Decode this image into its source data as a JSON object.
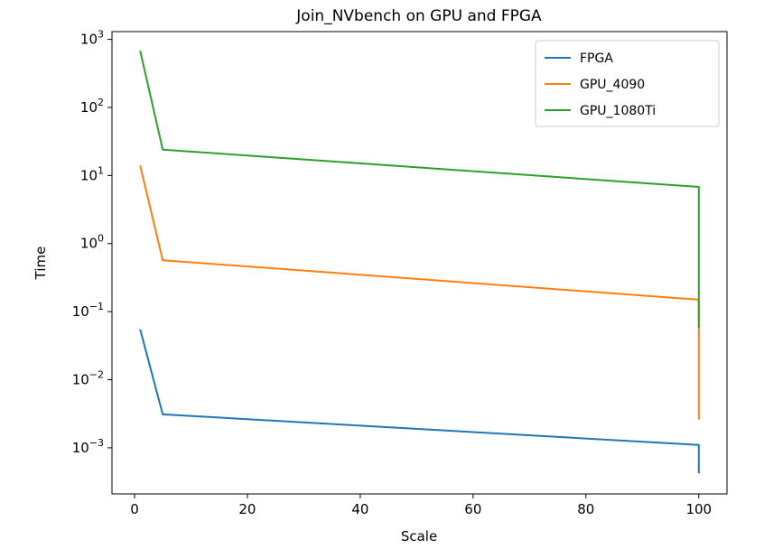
{
  "chart_data": {
    "type": "line",
    "title": "Join_NVbench on GPU and FPGA",
    "xlabel": "Scale",
    "ylabel": "Time",
    "xlim": [
      -4,
      105
    ],
    "ylim": [
      0.00021,
      1300
    ],
    "yscale": "log",
    "grid": false,
    "legend_position": "top-right",
    "xticks": [
      {
        "value": 0,
        "label": "0"
      },
      {
        "value": 20,
        "label": "20"
      },
      {
        "value": 40,
        "label": "40"
      },
      {
        "value": 60,
        "label": "60"
      },
      {
        "value": 80,
        "label": "80"
      },
      {
        "value": 100,
        "label": "100"
      }
    ],
    "yticks": [
      {
        "value": 0.001,
        "base": "10",
        "exp": "−3"
      },
      {
        "value": 0.01,
        "base": "10",
        "exp": "−2"
      },
      {
        "value": 0.1,
        "base": "10",
        "exp": "−1"
      },
      {
        "value": 1,
        "base": "10",
        "exp": "0"
      },
      {
        "value": 10,
        "base": "10",
        "exp": "1"
      },
      {
        "value": 100,
        "base": "10",
        "exp": "2"
      },
      {
        "value": 1000,
        "base": "10",
        "exp": "3"
      }
    ],
    "series": [
      {
        "name": "FPGA",
        "color": "#1f77b4",
        "x": [
          1,
          5,
          100,
          100
        ],
        "y": [
          0.055,
          0.0031,
          0.0011,
          0.00042
        ]
      },
      {
        "name": "GPU_4090",
        "color": "#ff7f0e",
        "x": [
          1,
          5,
          100,
          100
        ],
        "y": [
          14,
          0.57,
          0.15,
          0.0026
        ]
      },
      {
        "name": "GPU_1080Ti",
        "color": "#2ca02c",
        "x": [
          1,
          5,
          100,
          100
        ],
        "y": [
          680,
          24,
          6.8,
          0.058
        ]
      }
    ]
  }
}
